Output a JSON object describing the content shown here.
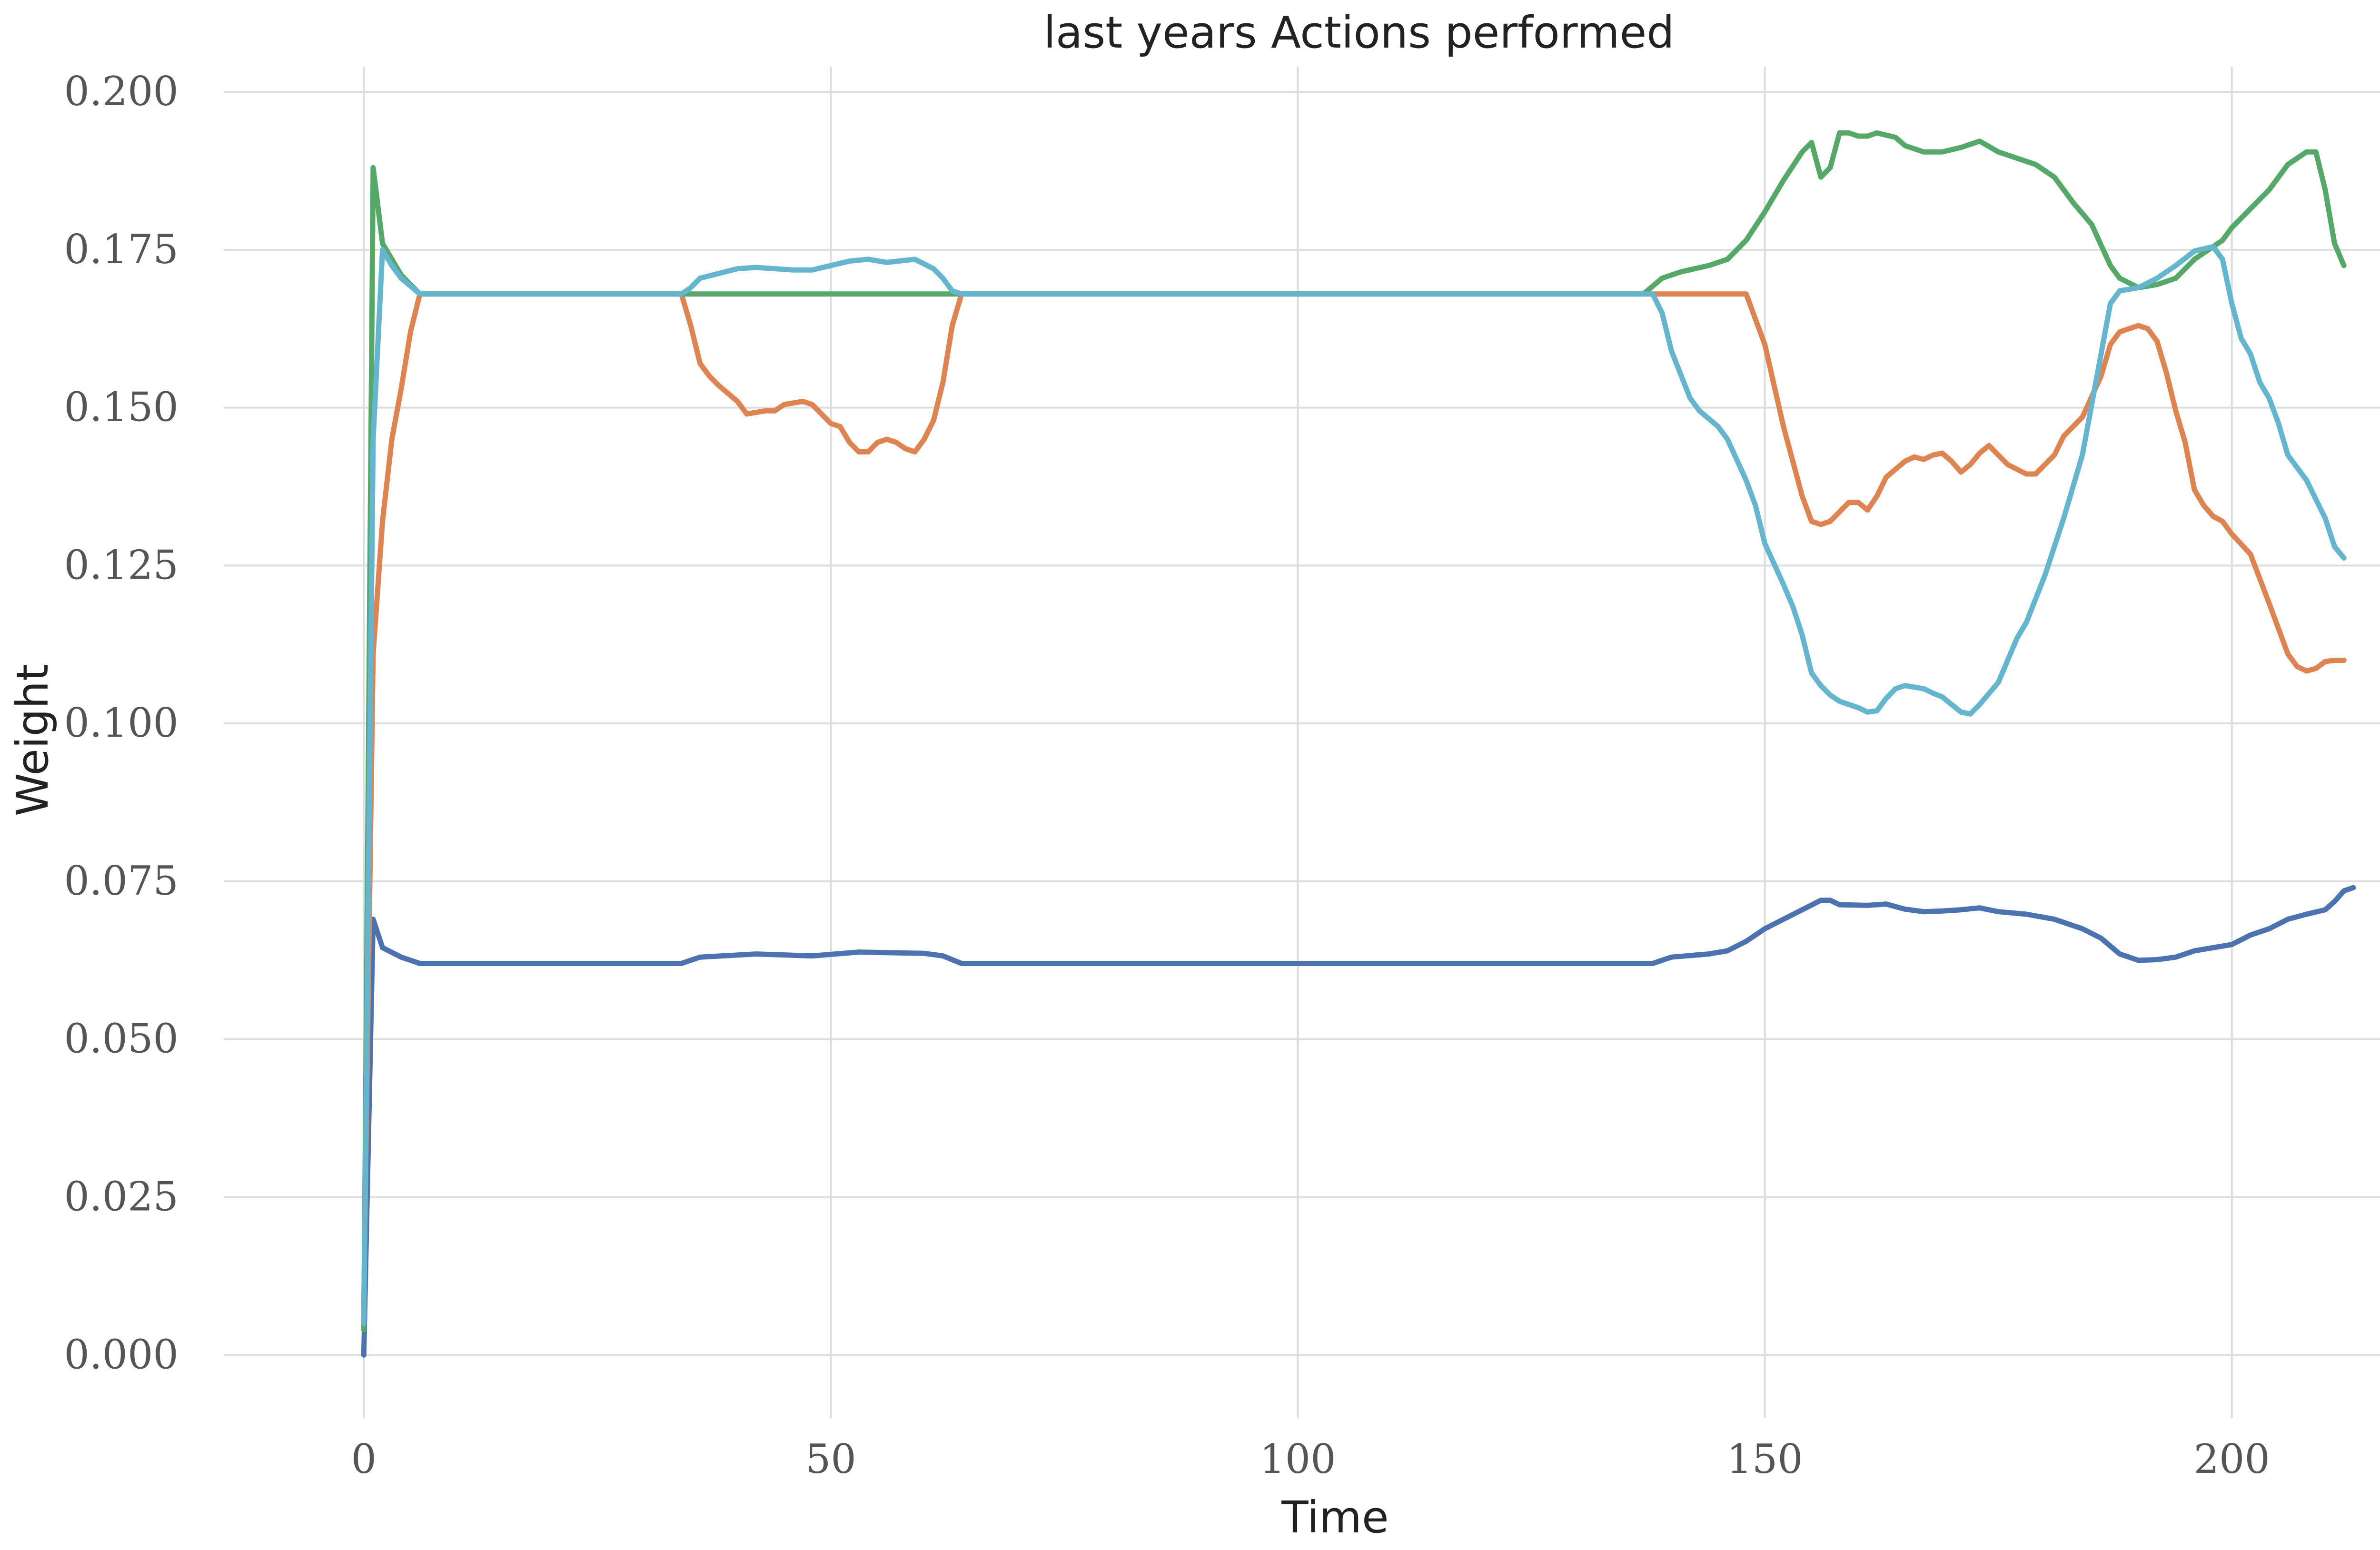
{
  "chart_data": {
    "type": "line",
    "title": "last years Actions performed",
    "xlabel": "Time",
    "ylabel": "Weight",
    "xlim": [
      -15,
      223
    ],
    "ylim": [
      -0.01,
      0.204
    ],
    "xticks": [
      0,
      50,
      100,
      150,
      200
    ],
    "xtick_labels": [
      "0",
      "50",
      "100",
      "150",
      "200"
    ],
    "yticks": [
      0,
      0.025,
      0.05,
      0.075,
      0.1,
      0.125,
      0.15,
      0.175,
      0.2
    ],
    "ytick_labels": [
      "0.000",
      "0.025",
      "0.050",
      "0.075",
      "0.100",
      "0.125",
      "0.150",
      "0.175",
      "0.200"
    ],
    "grid": true,
    "legend": "none",
    "series": [
      {
        "color": "#4c72b0",
        "points": [
          [
            0,
            0
          ],
          [
            1,
            0.069
          ],
          [
            2,
            0.0645
          ],
          [
            4,
            0.063
          ],
          [
            6,
            0.062
          ],
          [
            34,
            0.062
          ],
          [
            36,
            0.063
          ],
          [
            42,
            0.0635
          ],
          [
            48,
            0.0632
          ],
          [
            53,
            0.0638
          ],
          [
            60,
            0.0636
          ],
          [
            62,
            0.0632
          ],
          [
            64,
            0.062
          ],
          [
            138,
            0.062
          ],
          [
            140,
            0.063
          ],
          [
            144,
            0.0635
          ],
          [
            146,
            0.064
          ],
          [
            148,
            0.0655
          ],
          [
            150,
            0.0675
          ],
          [
            152,
            0.069
          ],
          [
            154,
            0.0705
          ],
          [
            156,
            0.072
          ],
          [
            157,
            0.072
          ],
          [
            158,
            0.0713
          ],
          [
            161,
            0.0712
          ],
          [
            163,
            0.0714
          ],
          [
            165,
            0.0706
          ],
          [
            167,
            0.0702
          ],
          [
            169,
            0.0703
          ],
          [
            171,
            0.0705
          ],
          [
            173,
            0.0708
          ],
          [
            175,
            0.0702
          ],
          [
            178,
            0.0698
          ],
          [
            181,
            0.069
          ],
          [
            184,
            0.0675
          ],
          [
            186,
            0.066
          ],
          [
            188,
            0.0635
          ],
          [
            190,
            0.0625
          ],
          [
            192,
            0.0626
          ],
          [
            194,
            0.063
          ],
          [
            196,
            0.064
          ],
          [
            198,
            0.0645
          ],
          [
            200,
            0.065
          ],
          [
            202,
            0.0665
          ],
          [
            204,
            0.0675
          ],
          [
            206,
            0.069
          ],
          [
            208,
            0.0698
          ],
          [
            210,
            0.0705
          ],
          [
            211,
            0.0718
          ],
          [
            212,
            0.0735
          ],
          [
            213,
            0.074
          ]
        ]
      },
      {
        "color": "#dd8452",
        "points": [
          [
            0,
            0.008
          ],
          [
            1,
            0.111
          ],
          [
            2,
            0.132
          ],
          [
            3,
            0.145
          ],
          [
            4,
            0.153
          ],
          [
            5,
            0.162
          ],
          [
            6,
            0.168
          ],
          [
            34,
            0.168
          ],
          [
            35,
            0.163
          ],
          [
            36,
            0.157
          ],
          [
            37,
            0.155
          ],
          [
            38,
            0.1535
          ],
          [
            40,
            0.151
          ],
          [
            41,
            0.149
          ],
          [
            43,
            0.1495
          ],
          [
            44,
            0.1495
          ],
          [
            45,
            0.1505
          ],
          [
            47,
            0.151
          ],
          [
            48,
            0.1505
          ],
          [
            49,
            0.149
          ],
          [
            50,
            0.1475
          ],
          [
            51,
            0.147
          ],
          [
            52,
            0.1445
          ],
          [
            53,
            0.143
          ],
          [
            54,
            0.143
          ],
          [
            55,
            0.1445
          ],
          [
            56,
            0.145
          ],
          [
            57,
            0.1445
          ],
          [
            58,
            0.1435
          ],
          [
            59,
            0.143
          ],
          [
            60,
            0.145
          ],
          [
            61,
            0.148
          ],
          [
            62,
            0.154
          ],
          [
            63,
            0.163
          ],
          [
            64,
            0.168
          ],
          [
            146,
            0.168
          ],
          [
            148,
            0.168
          ],
          [
            150,
            0.16
          ],
          [
            152,
            0.147
          ],
          [
            154,
            0.136
          ],
          [
            155,
            0.132
          ],
          [
            156,
            0.1315
          ],
          [
            157,
            0.132
          ],
          [
            158,
            0.1335
          ],
          [
            159,
            0.135
          ],
          [
            160,
            0.135
          ],
          [
            161,
            0.1338
          ],
          [
            162,
            0.136
          ],
          [
            163,
            0.139
          ],
          [
            165,
            0.1415
          ],
          [
            166,
            0.1422
          ],
          [
            167,
            0.1418
          ],
          [
            168,
            0.1425
          ],
          [
            169,
            0.1428
          ],
          [
            170,
            0.1415
          ],
          [
            171,
            0.1398
          ],
          [
            172,
            0.141
          ],
          [
            173,
            0.1428
          ],
          [
            174,
            0.144
          ],
          [
            175,
            0.1425
          ],
          [
            176,
            0.141
          ],
          [
            178,
            0.1395
          ],
          [
            179,
            0.1395
          ],
          [
            181,
            0.1425
          ],
          [
            182,
            0.1455
          ],
          [
            184,
            0.1485
          ],
          [
            186,
            0.155
          ],
          [
            187,
            0.16
          ],
          [
            188,
            0.162
          ],
          [
            189,
            0.1625
          ],
          [
            190,
            0.163
          ],
          [
            191,
            0.1625
          ],
          [
            192,
            0.1605
          ],
          [
            193,
            0.1555
          ],
          [
            194,
            0.1495
          ],
          [
            195,
            0.1445
          ],
          [
            196,
            0.137
          ],
          [
            197,
            0.1345
          ],
          [
            198,
            0.1328
          ],
          [
            199,
            0.132
          ],
          [
            200,
            0.13
          ],
          [
            202,
            0.1268
          ],
          [
            204,
            0.119
          ],
          [
            206,
            0.111
          ],
          [
            207,
            0.109
          ],
          [
            208,
            0.1083
          ],
          [
            209,
            0.1087
          ],
          [
            210,
            0.1098
          ],
          [
            211,
            0.11
          ],
          [
            212,
            0.11
          ]
        ]
      },
      {
        "color": "#55a868",
        "points": [
          [
            0,
            0.004
          ],
          [
            1,
            0.188
          ],
          [
            2,
            0.176
          ],
          [
            4,
            0.171
          ],
          [
            6,
            0.168
          ],
          [
            137,
            0.168
          ],
          [
            139,
            0.1705
          ],
          [
            141,
            0.1715
          ],
          [
            144,
            0.1725
          ],
          [
            146,
            0.1735
          ],
          [
            148,
            0.1765
          ],
          [
            150,
            0.181
          ],
          [
            152,
            0.186
          ],
          [
            154,
            0.1905
          ],
          [
            155,
            0.192
          ],
          [
            156,
            0.1865
          ],
          [
            157,
            0.188
          ],
          [
            158,
            0.1935
          ],
          [
            159,
            0.1935
          ],
          [
            160,
            0.193
          ],
          [
            161,
            0.193
          ],
          [
            162,
            0.1935
          ],
          [
            164,
            0.1928
          ],
          [
            165,
            0.1915
          ],
          [
            167,
            0.1905
          ],
          [
            169,
            0.1905
          ],
          [
            171,
            0.1912
          ],
          [
            173,
            0.1922
          ],
          [
            175,
            0.1905
          ],
          [
            177,
            0.1895
          ],
          [
            179,
            0.1885
          ],
          [
            181,
            0.1865
          ],
          [
            183,
            0.1825
          ],
          [
            185,
            0.179
          ],
          [
            187,
            0.1725
          ],
          [
            188,
            0.1705
          ],
          [
            190,
            0.169
          ],
          [
            192,
            0.1695
          ],
          [
            194,
            0.1705
          ],
          [
            196,
            0.1735
          ],
          [
            198,
            0.1755
          ],
          [
            199,
            0.1765
          ],
          [
            200,
            0.1785
          ],
          [
            202,
            0.1815
          ],
          [
            204,
            0.1845
          ],
          [
            206,
            0.1885
          ],
          [
            208,
            0.1905
          ],
          [
            209,
            0.1905
          ],
          [
            210,
            0.1845
          ],
          [
            211,
            0.176
          ],
          [
            212,
            0.1725
          ]
        ]
      },
      {
        "color": "#64b5cd",
        "points": [
          [
            0,
            0.005
          ],
          [
            1,
            0.145
          ],
          [
            2,
            0.175
          ],
          [
            3,
            0.1725
          ],
          [
            4,
            0.1705
          ],
          [
            6,
            0.168
          ],
          [
            34,
            0.168
          ],
          [
            35,
            0.169
          ],
          [
            36,
            0.1705
          ],
          [
            40,
            0.172
          ],
          [
            42,
            0.1722
          ],
          [
            46,
            0.1718
          ],
          [
            48,
            0.1718
          ],
          [
            50,
            0.1725
          ],
          [
            52,
            0.1732
          ],
          [
            54,
            0.1735
          ],
          [
            56,
            0.173
          ],
          [
            59,
            0.1735
          ],
          [
            61,
            0.172
          ],
          [
            62,
            0.1705
          ],
          [
            63,
            0.1685
          ],
          [
            64,
            0.168
          ],
          [
            138,
            0.168
          ],
          [
            139,
            0.165
          ],
          [
            140,
            0.159
          ],
          [
            142,
            0.1515
          ],
          [
            143,
            0.1495
          ],
          [
            145,
            0.147
          ],
          [
            146,
            0.145
          ],
          [
            148,
            0.1385
          ],
          [
            149,
            0.1345
          ],
          [
            150,
            0.1285
          ],
          [
            152,
            0.122
          ],
          [
            153,
            0.1185
          ],
          [
            154,
            0.114
          ],
          [
            155,
            0.108
          ],
          [
            156,
            0.106
          ],
          [
            157,
            0.1045
          ],
          [
            158,
            0.1035
          ],
          [
            160,
            0.1025
          ],
          [
            161,
            0.1018
          ],
          [
            162,
            0.102
          ],
          [
            163,
            0.104
          ],
          [
            164,
            0.1055
          ],
          [
            165,
            0.106
          ],
          [
            167,
            0.1055
          ],
          [
            168,
            0.1048
          ],
          [
            169,
            0.1042
          ],
          [
            170,
            0.103
          ],
          [
            171,
            0.1018
          ],
          [
            172,
            0.1015
          ],
          [
            173,
            0.103
          ],
          [
            175,
            0.1065
          ],
          [
            177,
            0.1135
          ],
          [
            178,
            0.116
          ],
          [
            180,
            0.1235
          ],
          [
            182,
            0.1325
          ],
          [
            184,
            0.1425
          ],
          [
            186,
            0.1585
          ],
          [
            187,
            0.1665
          ],
          [
            188,
            0.1685
          ],
          [
            190,
            0.169
          ],
          [
            192,
            0.1705
          ],
          [
            194,
            0.1725
          ],
          [
            196,
            0.1748
          ],
          [
            198,
            0.1755
          ],
          [
            199,
            0.1735
          ],
          [
            200,
            0.1665
          ],
          [
            201,
            0.161
          ],
          [
            202,
            0.1585
          ],
          [
            203,
            0.154
          ],
          [
            204,
            0.1515
          ],
          [
            205,
            0.1475
          ],
          [
            206,
            0.1425
          ],
          [
            207,
            0.1405
          ],
          [
            208,
            0.1385
          ],
          [
            209,
            0.1355
          ],
          [
            210,
            0.1325
          ],
          [
            211,
            0.128
          ],
          [
            212,
            0.1262
          ]
        ]
      }
    ]
  }
}
